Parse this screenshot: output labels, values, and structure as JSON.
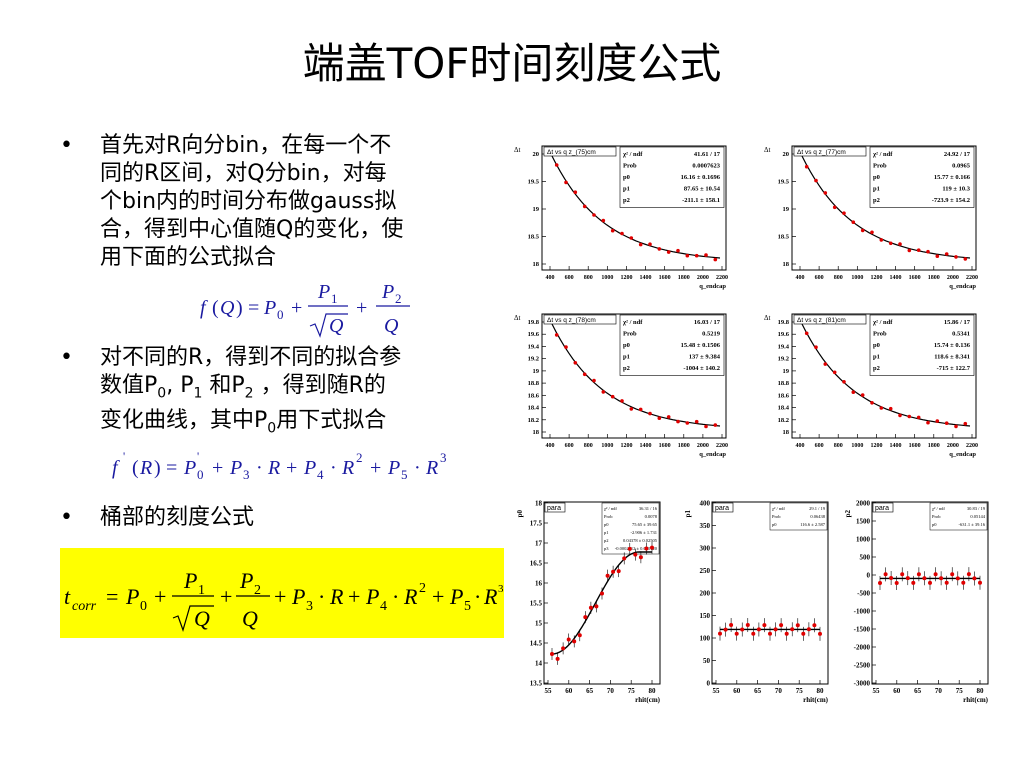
{
  "title": "端盖TOF时间刻度公式",
  "bullets": {
    "b1": [
      "首先对R向分bin，在每一个不",
      "同的R区间，对Q分bin，对每",
      "个bin内的时间分布做gauss拟",
      "合，得到中心值随Q的变化，使",
      "用下面的公式拟合"
    ],
    "b2_line1": "对不同的R，得到不同的拟合参",
    "b2_line2_a": "数值P",
    "b2_line2_b": "0",
    "b2_line2_c": ", P",
    "b2_line2_d": "1",
    "b2_line2_e": " 和P",
    "b2_line2_f": "2",
    "b2_line2_g": " ，得到随R的",
    "b2_line3_a": "变化曲线，其中P",
    "b2_line3_b": "0",
    "b2_line3_c": "用下式拟合",
    "b3": "桶部的刻度公式",
    "dot": "•"
  },
  "formulas": {
    "f1_lhs": "f (Q) = P",
    "f1_p": "P",
    "f1_q": "Q",
    "f2": "f ′ (R) = P′0 + P3 · R + P4 · R² + P5 · R³",
    "f3_lhs": "t",
    "f3_sub": "corr"
  },
  "top_plots": [
    {
      "name": "q-75",
      "title": "Δt vs q z_(75)cm",
      "stats": [
        [
          "χ² / ndf",
          "41.61 / 17"
        ],
        [
          "Prob",
          "0.0007623"
        ],
        [
          "p0",
          "16.16 ± 0.1696"
        ],
        [
          "p1",
          "87.65 ± 10.54"
        ],
        [
          "p2",
          "-211.1 ± 158.1"
        ]
      ],
      "yticks": [
        "20",
        "19.5",
        "19",
        "18.5",
        "18"
      ],
      "xticks": [
        "400",
        "600",
        "800",
        "1000",
        "1200",
        "1400",
        "1600",
        "1800",
        "2000",
        "2200"
      ],
      "xlabel": "q_endcap",
      "ylabel": "Δt"
    },
    {
      "name": "q-77",
      "title": "Δt vs q z_(77)cm",
      "stats": [
        [
          "χ² / ndf",
          "24.92 / 17"
        ],
        [
          "Prob",
          "0.0965"
        ],
        [
          "p0",
          "15.77 ± 0.166"
        ],
        [
          "p1",
          "119 ± 10.3"
        ],
        [
          "p2",
          "-723.9 ± 154.2"
        ]
      ],
      "yticks": [
        "20",
        "19.5",
        "19",
        "18.5",
        "18"
      ],
      "xticks": [
        "400",
        "600",
        "800",
        "1000",
        "1200",
        "1400",
        "1600",
        "1800",
        "2000",
        "2200"
      ],
      "xlabel": "q_endcap",
      "ylabel": "Δt"
    },
    {
      "name": "q-78",
      "title": "Δt vs q z_(78)cm",
      "stats": [
        [
          "χ² / ndf",
          "16.03 / 17"
        ],
        [
          "Prob",
          "0.5219"
        ],
        [
          "p0",
          "15.48 ± 0.1506"
        ],
        [
          "p1",
          "137 ± 9.384"
        ],
        [
          "p2",
          "-1004 ± 140.2"
        ]
      ],
      "yticks": [
        "19.8",
        "19.6",
        "19.4",
        "19.2",
        "19",
        "18.8",
        "18.6",
        "18.4",
        "18.2",
        "18"
      ],
      "xticks": [
        "400",
        "600",
        "800",
        "1000",
        "1200",
        "1400",
        "1600",
        "1800",
        "2000",
        "2200"
      ],
      "xlabel": "q_endcap",
      "ylabel": "Δt"
    },
    {
      "name": "q-81",
      "title": "Δt vs q z_(81)cm",
      "stats": [
        [
          "χ² / ndf",
          "15.86 / 17"
        ],
        [
          "Prob",
          "0.5341"
        ],
        [
          "p0",
          "15.74 ± 0.136"
        ],
        [
          "p1",
          "118.6 ± 8.341"
        ],
        [
          "p2",
          "-715 ± 122.7"
        ]
      ],
      "yticks": [
        "19.8",
        "19.6",
        "19.4",
        "19.2",
        "19",
        "18.8",
        "18.6",
        "18.4",
        "18.2",
        "18"
      ],
      "xticks": [
        "400",
        "600",
        "800",
        "1000",
        "1200",
        "1400",
        "1600",
        "1800",
        "2000",
        "2200"
      ],
      "xlabel": "q_endcap",
      "ylabel": "Δt"
    }
  ],
  "bottom_plots": [
    {
      "name": "p0",
      "tag": "para",
      "ylabel": "p0",
      "yticks": [
        "18",
        "17.5",
        "17",
        "16.5",
        "16",
        "15.5",
        "15",
        "14.5",
        "14",
        "13.5"
      ],
      "stats": [
        [
          "χ² / ndf",
          "36.31 / 16"
        ],
        [
          "Prob",
          "0.0078"
        ],
        [
          "p0",
          "75.65 ± 39.65"
        ],
        [
          "p1",
          "-2.906 ± 1.731"
        ],
        [
          "p2",
          "0.04378 ± 0.02505"
        ],
        [
          "p3",
          "-0.0002412 ± 0.000120"
        ]
      ]
    },
    {
      "name": "p1",
      "tag": "para",
      "ylabel": "p1",
      "yticks": [
        "400",
        "350",
        "300",
        "250",
        "200",
        "150",
        "100",
        "50",
        "0"
      ],
      "stats": [
        [
          "χ² / ndf",
          "29.1 / 19"
        ],
        [
          "Prob",
          "0.06438"
        ],
        [
          "p0",
          "116.6 ± 2.587"
        ]
      ]
    },
    {
      "name": "p2",
      "tag": "para",
      "ylabel": "p2",
      "yticks": [
        "2000",
        "1500",
        "1000",
        "500",
        "0",
        "-500",
        "-1000",
        "-1500",
        "-2000",
        "-2500",
        "-3000"
      ],
      "stats": [
        [
          "χ² / ndf",
          "30.83 / 19"
        ],
        [
          "Prob",
          "0.05144"
        ],
        [
          "p0",
          "-631.1 ± 39.16"
        ]
      ]
    }
  ],
  "bottom_xticks": [
    "55",
    "60",
    "65",
    "70",
    "75",
    "80"
  ],
  "bottom_xlabel": "rhit(cm)",
  "colors": {
    "formula": "#1a1aa0",
    "highlight": "#ffff00",
    "points": "#e00000"
  }
}
